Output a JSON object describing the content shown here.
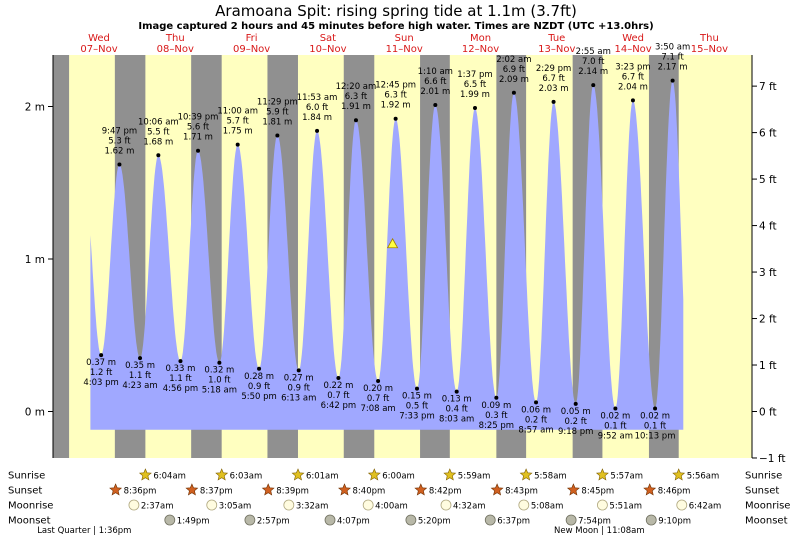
{
  "title": "Aramoana Spit: rising  spring tide at 1.1m (3.7ft)",
  "subtitle": "Image captured 2 hours and 45 minutes before high water. Times are NZDT (UTC +13.0hrs)",
  "days": [
    {
      "dow": "Wed",
      "date": "07–Nov"
    },
    {
      "dow": "Thu",
      "date": "08–Nov"
    },
    {
      "dow": "Fri",
      "date": "09–Nov"
    },
    {
      "dow": "Sat",
      "date": "10–Nov"
    },
    {
      "dow": "Sun",
      "date": "11–Nov"
    },
    {
      "dow": "Mon",
      "date": "12–Nov"
    },
    {
      "dow": "Tue",
      "date": "13–Nov"
    },
    {
      "dow": "Wed",
      "date": "14–Nov"
    },
    {
      "dow": "Thu",
      "date": "15–Nov"
    }
  ],
  "y_left_labels": [
    "2 m",
    "1 m",
    "0 m"
  ],
  "y_right_labels": [
    "7 ft",
    "6 ft",
    "5 ft",
    "4 ft",
    "3 ft",
    "2 ft",
    "1 ft",
    "0 ft",
    "−1 ft"
  ],
  "colors": {
    "day": "#ffffc0",
    "night": "#909090",
    "water": "#a0a8ff",
    "sun": "#e0c020",
    "sunset": "#d06020"
  },
  "chart_data": {
    "type": "area",
    "xlabel": "",
    "ylabel": "",
    "ylim": [
      -0.3,
      2.3
    ],
    "y_right_unit": "ft",
    "current": {
      "value_m": 1.1,
      "value_ft": 3.7,
      "state": "rising"
    },
    "events": [
      {
        "kind": "low",
        "time": "4:03 pm",
        "m": "0.37 m",
        "ft": "1.2 ft",
        "x": 0.67,
        "y": 0.37
      },
      {
        "kind": "high",
        "time": "9:47 pm",
        "m": "1.62 m",
        "ft": "5.3 ft",
        "x": 0.91,
        "y": 1.62
      },
      {
        "kind": "low",
        "time": "4:23 am",
        "m": "0.35 m",
        "ft": "1.1 ft",
        "x": 1.18,
        "y": 0.35
      },
      {
        "kind": "high",
        "time": "10:06 am",
        "m": "1.68 m",
        "ft": "5.5 ft",
        "x": 1.42,
        "y": 1.68
      },
      {
        "kind": "low",
        "time": "4:56 pm",
        "m": "0.33 m",
        "ft": "1.1 ft",
        "x": 1.71,
        "y": 0.33
      },
      {
        "kind": "high",
        "time": "10:39 pm",
        "m": "1.71 m",
        "ft": "5.6 ft",
        "x": 1.94,
        "y": 1.71
      },
      {
        "kind": "low",
        "time": "5:18 am",
        "m": "0.32 m",
        "ft": "1.0 ft",
        "x": 2.22,
        "y": 0.32
      },
      {
        "kind": "high",
        "time": "11:00 am",
        "m": "1.75 m",
        "ft": "5.7 ft",
        "x": 2.46,
        "y": 1.75
      },
      {
        "kind": "low",
        "time": "5:50 pm",
        "m": "0.28 m",
        "ft": "0.9 ft",
        "x": 2.74,
        "y": 0.28
      },
      {
        "kind": "high",
        "time": "11:29 pm",
        "m": "1.81 m",
        "ft": "5.9 ft",
        "x": 2.98,
        "y": 1.81
      },
      {
        "kind": "low",
        "time": "6:13 am",
        "m": "0.27 m",
        "ft": "0.9 ft",
        "x": 3.26,
        "y": 0.27
      },
      {
        "kind": "high",
        "time": "11:53 am",
        "m": "1.84 m",
        "ft": "6.0 ft",
        "x": 3.5,
        "y": 1.84
      },
      {
        "kind": "low",
        "time": "6:42 pm",
        "m": "0.22 m",
        "ft": "0.7 ft",
        "x": 3.78,
        "y": 0.22
      },
      {
        "kind": "high",
        "time": "12:20 am",
        "m": "1.91 m",
        "ft": "6.3 ft",
        "x": 4.01,
        "y": 1.91
      },
      {
        "kind": "low",
        "time": "7:08 am",
        "m": "0.20 m",
        "ft": "0.7 ft",
        "x": 4.3,
        "y": 0.2
      },
      {
        "kind": "high",
        "time": "12:45 pm",
        "m": "1.92 m",
        "ft": "6.3 ft",
        "x": 4.53,
        "y": 1.92
      },
      {
        "kind": "low",
        "time": "7:33 pm",
        "m": "0.15 m",
        "ft": "0.5 ft",
        "x": 4.81,
        "y": 0.15
      },
      {
        "kind": "high",
        "time": "1:10 am",
        "m": "2.01 m",
        "ft": "6.6 ft",
        "x": 5.05,
        "y": 2.01
      },
      {
        "kind": "low",
        "time": "8:03 am",
        "m": "0.13 m",
        "ft": "0.4 ft",
        "x": 5.33,
        "y": 0.13
      },
      {
        "kind": "high",
        "time": "1:37 pm",
        "m": "1.99 m",
        "ft": "6.5 ft",
        "x": 5.57,
        "y": 1.99
      },
      {
        "kind": "low",
        "time": "8:25 pm",
        "m": "0.09 m",
        "ft": "0.3 ft",
        "x": 5.85,
        "y": 0.09
      },
      {
        "kind": "high",
        "time": "2:02 am",
        "m": "2.09 m",
        "ft": "6.9 ft",
        "x": 6.08,
        "y": 2.09
      },
      {
        "kind": "low",
        "time": "8:57 am",
        "m": "0.06 m",
        "ft": "0.2 ft",
        "x": 6.37,
        "y": 0.06
      },
      {
        "kind": "high",
        "time": "2:29 pm",
        "m": "2.03 m",
        "ft": "6.7 ft",
        "x": 6.6,
        "y": 2.03
      },
      {
        "kind": "low",
        "time": "9:18 pm",
        "m": "0.05 m",
        "ft": "0.2 ft",
        "x": 6.89,
        "y": 0.05
      },
      {
        "kind": "high",
        "time": "2:55 am",
        "m": "2.14 m",
        "ft": "7.0 ft",
        "x": 7.12,
        "y": 2.14
      },
      {
        "kind": "low",
        "time": "9:52 am",
        "m": "0.02 m",
        "ft": "0.1 ft",
        "x": 7.41,
        "y": 0.02
      },
      {
        "kind": "high",
        "time": "3:23 pm",
        "m": "2.04 m",
        "ft": "6.7 ft",
        "x": 7.64,
        "y": 2.04
      },
      {
        "kind": "low",
        "time": "10:13 pm",
        "m": "0.02 m",
        "ft": "0.1 ft",
        "x": 7.93,
        "y": 0.02
      },
      {
        "kind": "high",
        "time": "3:50 am",
        "m": "2.17 m",
        "ft": "7.1 ft",
        "x": 8.16,
        "y": 2.17
      }
    ],
    "nights": [
      [
        -0.3,
        0.25
      ],
      [
        0.85,
        1.25
      ],
      [
        1.85,
        2.25
      ],
      [
        2.85,
        3.25
      ],
      [
        3.85,
        4.25
      ],
      [
        4.85,
        5.24
      ],
      [
        5.85,
        6.24
      ],
      [
        6.85,
        7.24
      ],
      [
        7.85,
        8.24
      ]
    ],
    "astro": {
      "row_labels": {
        "sunrise": "Sunrise",
        "sunset": "Sunset",
        "moonrise": "Moonrise",
        "moonset": "Moonset"
      },
      "sunrise": [
        {
          "x": 1.25,
          "t": "6:04am"
        },
        {
          "x": 2.25,
          "t": "6:03am"
        },
        {
          "x": 3.25,
          "t": "6:01am"
        },
        {
          "x": 4.25,
          "t": "6:00am"
        },
        {
          "x": 5.24,
          "t": "5:59am"
        },
        {
          "x": 6.24,
          "t": "5:58am"
        },
        {
          "x": 7.24,
          "t": "5:57am"
        },
        {
          "x": 8.24,
          "t": "5:56am"
        }
      ],
      "sunset": [
        {
          "x": 0.86,
          "t": "8:36pm"
        },
        {
          "x": 1.86,
          "t": "8:37pm"
        },
        {
          "x": 2.86,
          "t": "8:39pm"
        },
        {
          "x": 3.86,
          "t": "8:40pm"
        },
        {
          "x": 4.86,
          "t": "8:42pm"
        },
        {
          "x": 5.86,
          "t": "8:43pm"
        },
        {
          "x": 6.86,
          "t": "8:45pm"
        },
        {
          "x": 7.86,
          "t": "8:46pm"
        }
      ],
      "moonrise": [
        {
          "x": 1.1,
          "t": "2:37am"
        },
        {
          "x": 2.12,
          "t": "3:05am"
        },
        {
          "x": 3.13,
          "t": "3:32am"
        },
        {
          "x": 4.17,
          "t": "4:00am"
        },
        {
          "x": 5.19,
          "t": "4:32am"
        },
        {
          "x": 6.21,
          "t": "5:08am"
        },
        {
          "x": 7.24,
          "t": "5:51am"
        },
        {
          "x": 8.28,
          "t": "6:42am"
        }
      ],
      "moonset": [
        {
          "x": 1.57,
          "t": "1:49pm"
        },
        {
          "x": 2.62,
          "t": "2:57pm"
        },
        {
          "x": 3.67,
          "t": "4:07pm"
        },
        {
          "x": 4.73,
          "t": "5:20pm"
        },
        {
          "x": 5.77,
          "t": "6:37pm"
        },
        {
          "x": 6.83,
          "t": "7:54pm"
        },
        {
          "x": 7.88,
          "t": "9:10pm"
        }
      ],
      "moon_phases": [
        {
          "x": 0.45,
          "t": "Last Quarter | 1:36pm"
        },
        {
          "x": 7.2,
          "t": "New Moon | 11:08am"
        }
      ]
    }
  }
}
